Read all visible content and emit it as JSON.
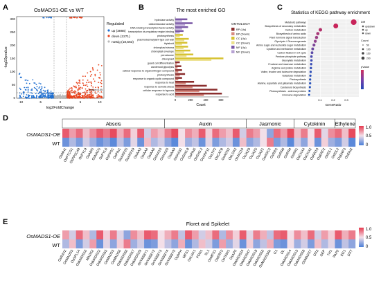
{
  "panels": {
    "A": {
      "letter": "A",
      "title": "OsMADS1-OE vs WT",
      "xlabel": "log2FoldChange",
      "ylabel": "-log10pvalue",
      "legend_title": "Regulated",
      "legend": [
        {
          "label": "up (3866)",
          "color": "#e8431c"
        },
        {
          "label": "down (2271)",
          "color": "#1f6fd1"
        },
        {
          "label": "notsig (18,563)",
          "color": "#b9b9b9"
        }
      ],
      "yticks": [
        "0",
        "50",
        "100",
        "150",
        "200",
        "250",
        "300"
      ],
      "xticks": [
        "-10",
        "-5",
        "0",
        "5",
        "10"
      ],
      "threshold_label": "pvalue=0.05",
      "chart_data": {
        "type": "scatter",
        "title": "OsMADS1-OE vs WT",
        "xlabel": "log2FoldChange",
        "ylabel": "-log10pvalue",
        "xlim": [
          -10,
          10
        ],
        "ylim": [
          0,
          300
        ],
        "series": [
          {
            "name": "up (3866)",
            "count": 3866
          },
          {
            "name": "down (2271)",
            "count": 2271
          },
          {
            "name": "notsig (18,563)",
            "count": 18563
          }
        ]
      }
    },
    "B": {
      "letter": "B",
      "title": "The most enriched GO",
      "xlabel": "Count",
      "xticks": [
        "0",
        "200",
        "400",
        "600"
      ],
      "legend_title": "ONTOLOGY",
      "legend": [
        {
          "label": "BP (Up)",
          "color": "#8b2e2e"
        },
        {
          "label": "BP (Down)",
          "color": "#d98b80"
        },
        {
          "label": "CC (Up)",
          "color": "#d6c232"
        },
        {
          "label": "CC (Down)",
          "color": "#ece08c"
        },
        {
          "label": "MF (Up)",
          "color": "#7a58a6"
        },
        {
          "label": "MF (Down)",
          "color": "#b7a2d3"
        }
      ],
      "chart_data": {
        "type": "bar",
        "orientation": "horizontal",
        "title": "The most enriched GO",
        "xlabel": "Count",
        "xlim": [
          0,
          700
        ],
        "categories": [
          "response to acid",
          "cellular response to hypoxia",
          "response to osmotic stress",
          "response to heat",
          "response to organic cyclic compound",
          "photosynthesis",
          "cellular response to organonitrogen compound",
          "carotenoid glycolysis",
          "guard cell differentiation",
          "chloroplast",
          "peroxisome",
          "chloroplast envelope",
          "chloroplast stroma",
          "thylakoid",
          "plasmodesma/plant-type cell wall",
          "photosynthesis ",
          "transcription cis-regulatory region binding",
          "DNA-binding transcription factor activity",
          "oxidoreductase activity",
          "hydrolase activity"
        ],
        "series": [
          {
            "name": "Up",
            "values": [
              620,
              560,
              420,
              250,
              90,
              130,
              90,
              80,
              60,
              640,
              240,
              200,
              170,
              160,
              180,
              100,
              110,
              170,
              230,
              160
            ]
          },
          {
            "name": "Down",
            "values": [
              380,
              320,
              230,
              140,
              40,
              60,
              40,
              30,
              25,
              480,
              150,
              120,
              110,
              90,
              120,
              60,
              60,
              90,
              130,
              90
            ]
          }
        ],
        "series_ontology": [
          "BP",
          "BP",
          "BP",
          "BP",
          "BP",
          "BP",
          "BP",
          "BP",
          "BP",
          "CC",
          "CC",
          "CC",
          "CC",
          "CC",
          "CC",
          "CC",
          "MF",
          "MF",
          "MF",
          "MF"
        ]
      }
    },
    "C": {
      "letter": "C",
      "title": "Statistics of KEGG pathway enrichment",
      "xlabel": "GeneRatio",
      "xticks": [
        "0.1",
        "0.2",
        "0.3"
      ],
      "legend_diff_title": "Diff",
      "legend_diff": [
        "up&down",
        "up",
        "down"
      ],
      "legend_count_title": "Count",
      "legend_count": [
        "50",
        "100",
        "150",
        "200"
      ],
      "legend_p_title": "pValue",
      "chart_data": {
        "type": "scatter",
        "title": "Statistics of KEGG pathway enrichment",
        "xlabel": "GeneRatio",
        "xlim": [
          0,
          0.4
        ],
        "categories": [
          "Metabolic pathways",
          "Biosynthesis of secondary metabolites",
          "Carbon metabolism",
          "Biosynthesis of amino acids",
          "Plant hormone signal transduction",
          "Glycolysis / Gluconeogenesis",
          "Amino sugar and nucleotide sugar metabolism",
          "Cysteine and methionine metabolism",
          "Carbon fixation in C4 cycle",
          "Pentose phosphate pathway",
          "Glyoxylate metabolism",
          "Fructose and mannose metabolism",
          "Arginine and proline metabolism",
          "Valine, leucine and isoleucine degradation",
          "Galactose metabolism",
          "Photosynthesis",
          "Alanine, aspartate and glutamate metabolism",
          "Carotenoid biosynthesis",
          "Photosynthesis - antenna proteins",
          "Limonene degradation"
        ],
        "x": [
          0.36,
          0.22,
          0.1,
          0.08,
          0.07,
          0.06,
          0.05,
          0.04,
          0.035,
          0.03,
          0.03,
          0.028,
          0.026,
          0.024,
          0.022,
          0.02,
          0.02,
          0.018,
          0.015,
          0.012
        ],
        "count": [
          220,
          150,
          60,
          50,
          45,
          40,
          35,
          30,
          25,
          22,
          20,
          18,
          18,
          16,
          15,
          14,
          14,
          12,
          10,
          8
        ]
      }
    },
    "D": {
      "letter": "D",
      "groups": [
        "Abscis",
        "Auxin",
        "Jasmonic",
        "Cytokinin",
        "Ethylene"
      ],
      "rows": [
        "OsMADS1-OE",
        "WT"
      ],
      "genes": [
        "OsMH1",
        "OsPTCS1",
        "OsPP2C49",
        "OsPYL9",
        "OsABI5",
        "OsNAC5",
        "OsPYL6",
        "OsPP2C",
        "OsPIN1",
        "OsARF25",
        "OsARF19",
        "OsIAA3",
        "OsIAA4",
        "OsIAA6",
        "OsIAA10",
        "OsIAA20",
        "OsIAA9",
        "OsIAA31",
        "OsGH3.8",
        "OsPIN5",
        "OsGH3.2",
        "OsARF11",
        "OsLTP2",
        "OsCATB",
        "OsAOS2",
        "OsLOX2",
        "OsJAZ10",
        "OsJAZ9",
        "OsJAZ5",
        "OsJAZ1",
        "OsAOC2",
        "OsRRS",
        "OsRR6",
        "OsRR4",
        "OsRR1",
        "OsCKX4",
        "OsCKX2",
        "OsRR10",
        "OsERF2",
        "OsEIL1",
        "OsEIL2",
        "OsERF3",
        "OsEIN2"
      ],
      "values": [
        [
          0.9,
          0.7,
          0.85,
          0.6,
          0.75,
          0.9,
          0.8,
          0.95,
          0.65,
          0.85,
          0.55,
          0.9,
          0.4,
          0.7,
          0.6,
          0.8,
          0.95,
          0.5,
          0.75,
          0.65,
          0.9,
          0.55,
          0.85,
          0.7,
          0.6,
          0.9,
          0.4,
          0.8,
          0.7,
          0.5,
          0.2,
          0.85,
          0.7,
          0.95,
          0.6,
          0.8,
          0.5,
          0.9,
          0.45,
          0.75,
          0.85,
          0.6,
          0.95
        ],
        [
          0.1,
          0.3,
          0.15,
          0.4,
          0.25,
          0.1,
          0.2,
          0.05,
          0.35,
          0.15,
          0.45,
          0.1,
          0.6,
          0.3,
          0.4,
          0.2,
          0.05,
          0.5,
          0.25,
          0.35,
          0.1,
          0.45,
          0.15,
          0.3,
          0.4,
          0.1,
          0.6,
          0.2,
          0.3,
          0.5,
          0.8,
          0.15,
          0.3,
          0.05,
          0.4,
          0.2,
          0.5,
          0.1,
          0.55,
          0.25,
          0.15,
          0.4,
          0.05
        ]
      ],
      "scale": [
        "1.0",
        "0.5",
        "0"
      ]
    },
    "E": {
      "letter": "E",
      "title": "Floret and Spikelet",
      "rows": [
        "OsMADS1-OE",
        "WT"
      ],
      "genes": [
        "OsRAV2",
        "OsMADS5",
        "OsSPL14",
        "OsMADS16",
        "MADS2",
        "OsMADS22",
        "OsMADS55",
        "OsMADS3",
        "OsMADS6",
        "OsMADS56",
        "OsMADS57",
        "OsMADS29",
        "OsYABBY1",
        "OsYABBY2",
        "OsYABBY3",
        "OsYABBY4",
        "OsYABBY5",
        "OsRPH",
        "MFS1",
        "OsLHX1",
        "FON1",
        "SL1",
        "OsMFS1",
        "OsERF2",
        "OsTAW1",
        "OsAP2",
        "OsMADS34",
        "OsMADS47",
        "OsMADS18",
        "OsMADS50",
        "OsMADS34b",
        "G1",
        "DL",
        "OsMADS14",
        "OsMADS15",
        "OsMADS58",
        "OsMADS7",
        "OS3",
        "DEP",
        "TH1",
        "PAP2",
        "EG1",
        "DST"
      ],
      "values": [
        [
          0.7,
          0.4,
          0.85,
          0.6,
          0.3,
          0.9,
          0.55,
          0.8,
          0.45,
          0.2,
          0.75,
          0.6,
          0.9,
          0.85,
          0.5,
          0.65,
          0.8,
          0.35,
          0.9,
          0.7,
          0.4,
          0.6,
          0.85,
          0.3,
          0.75,
          0.55,
          0.9,
          0.45,
          0.8,
          0.65,
          0.35,
          0.85,
          0.9,
          0.5,
          0.75,
          0.6,
          0.85,
          0.4,
          0.7,
          0.55,
          0.9,
          0.65,
          0.8
        ],
        [
          0.3,
          0.6,
          0.15,
          0.4,
          0.7,
          0.1,
          0.45,
          0.2,
          0.55,
          0.8,
          0.25,
          0.4,
          0.1,
          0.15,
          0.5,
          0.35,
          0.2,
          0.65,
          0.1,
          0.3,
          0.6,
          0.4,
          0.15,
          0.7,
          0.25,
          0.45,
          0.1,
          0.55,
          0.2,
          0.35,
          0.65,
          0.15,
          0.1,
          0.5,
          0.25,
          0.4,
          0.15,
          0.6,
          0.3,
          0.45,
          0.1,
          0.35,
          0.2
        ]
      ],
      "scale": [
        "1.0",
        "0.5",
        "0"
      ]
    }
  },
  "colors": {
    "high": "#e63a4f",
    "mid": "#f3dfe8",
    "low": "#4a7fd8"
  }
}
